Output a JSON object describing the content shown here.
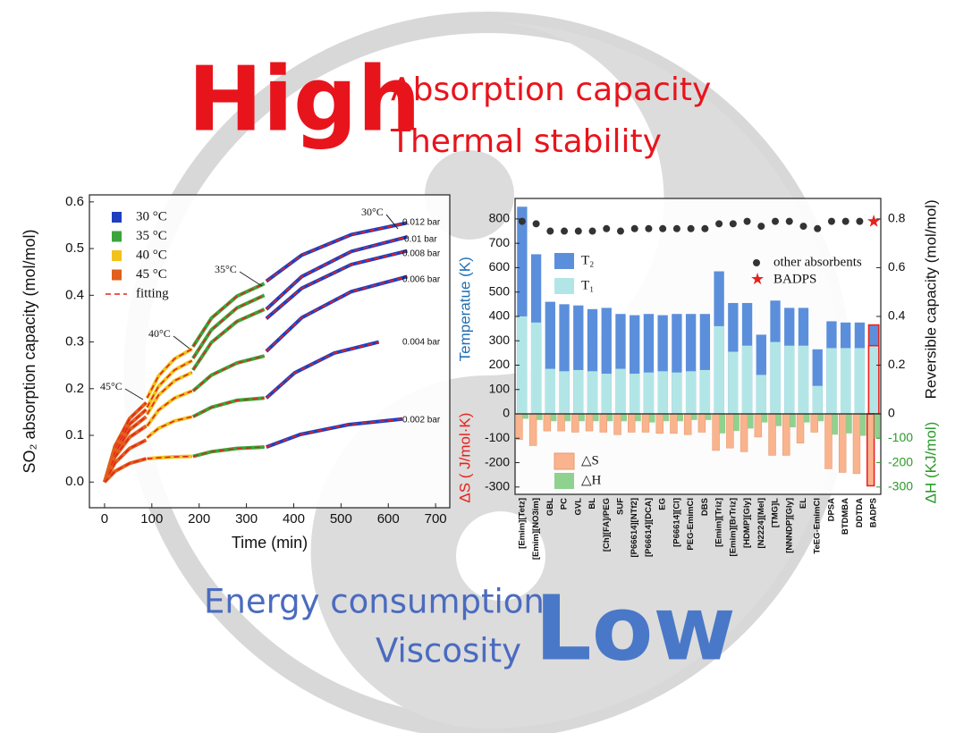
{
  "headline": {
    "high": "High",
    "high_items": [
      "Absorption capacity",
      "Thermal stability"
    ],
    "low": "Low",
    "low_items": [
      "Energy consumption",
      "Viscosity"
    ]
  },
  "chart_data": [
    {
      "type": "line",
      "xlabel": "Time (min)",
      "ylabel": "SO₂ absorption capacity (mol/mol)",
      "xlim": [
        -32,
        730
      ],
      "xticks": [
        0,
        100,
        200,
        300,
        400,
        500,
        600,
        700
      ],
      "ylim": [
        -0.055,
        0.615
      ],
      "yticks": [
        {
          "value": 0,
          "label": "0.0"
        },
        0.1,
        0.2,
        0.3,
        0.4,
        0.5,
        0.6
      ],
      "series": [
        {
          "name": "30 °C",
          "color": "#1f3fbf",
          "segments": [
            {
              "x": [
                342,
                417,
                522,
                640
              ],
              "values": [
                0.43,
                0.486,
                0.53,
                0.555
              ]
            },
            {
              "x": [
                342,
                417,
                522,
                640
              ],
              "values": [
                0.37,
                0.44,
                0.494,
                0.525
              ]
            },
            {
              "x": [
                342,
                417,
                522,
                640
              ],
              "values": [
                0.35,
                0.415,
                0.466,
                0.495
              ]
            },
            {
              "x": [
                342,
                417,
                522,
                640
              ],
              "values": [
                0.28,
                0.352,
                0.408,
                0.44
              ]
            },
            {
              "x": [
                342,
                402,
                485,
                580
              ],
              "values": [
                0.18,
                0.234,
                0.276,
                0.3
              ]
            },
            {
              "x": [
                342,
                414,
                516,
                630
              ],
              "values": [
                0.075,
                0.102,
                0.123,
                0.135
              ]
            }
          ]
        },
        {
          "name": "35 °C",
          "color": "#3aa53a",
          "segments": [
            {
              "x": [
                187,
                226,
                280,
                338
              ],
              "values": [
                0.29,
                0.351,
                0.398,
                0.425
              ]
            },
            {
              "x": [
                187,
                226,
                280,
                338
              ],
              "values": [
                0.265,
                0.326,
                0.373,
                0.4
              ]
            },
            {
              "x": [
                187,
                226,
                280,
                338
              ],
              "values": [
                0.24,
                0.299,
                0.344,
                0.37
              ]
            },
            {
              "x": [
                187,
                226,
                280,
                338
              ],
              "values": [
                0.195,
                0.229,
                0.255,
                0.27
              ]
            },
            {
              "x": [
                187,
                226,
                280,
                338
              ],
              "values": [
                0.14,
                0.16,
                0.175,
                0.18
              ]
            },
            {
              "x": [
                187,
                226,
                280,
                338
              ],
              "values": [
                0.055,
                0.065,
                0.072,
                0.075
              ]
            }
          ]
        },
        {
          "name": "40 °C",
          "color": "#f2c21c",
          "segments": [
            {
              "x": [
                90,
                114,
                148,
                185
              ],
              "values": [
                0.18,
                0.227,
                0.264,
                0.285
              ]
            },
            {
              "x": [
                90,
                114,
                148,
                185
              ],
              "values": [
                0.16,
                0.205,
                0.24,
                0.26
              ]
            },
            {
              "x": [
                90,
                114,
                148,
                185
              ],
              "values": [
                0.145,
                0.186,
                0.217,
                0.235
              ]
            },
            {
              "x": [
                90,
                114,
                148,
                185
              ],
              "values": [
                0.12,
                0.154,
                0.18,
                0.195
              ]
            },
            {
              "x": [
                90,
                114,
                148,
                185
              ],
              "values": [
                0.095,
                0.115,
                0.131,
                0.14
              ]
            },
            {
              "x": [
                90,
                114,
                148,
                185
              ],
              "values": [
                0.05,
                0.052,
                0.054,
                0.055
              ]
            }
          ]
        },
        {
          "name": "45 °C",
          "color": "#e0601c",
          "segments": [
            {
              "x": [
                0,
                22,
                53,
                88
              ],
              "values": [
                0,
                0.077,
                0.136,
                0.17
              ]
            },
            {
              "x": [
                0,
                22,
                53,
                88
              ],
              "values": [
                0,
                0.07,
                0.124,
                0.155
              ]
            },
            {
              "x": [
                0,
                22,
                53,
                88
              ],
              "values": [
                0,
                0.063,
                0.112,
                0.14
              ]
            },
            {
              "x": [
                0,
                22,
                53,
                88
              ],
              "values": [
                0,
                0.054,
                0.096,
                0.12
              ]
            },
            {
              "x": [
                0,
                22,
                53,
                88
              ],
              "values": [
                0,
                0.041,
                0.072,
                0.09
              ]
            },
            {
              "x": [
                0,
                22,
                53,
                88
              ],
              "values": [
                0,
                0.023,
                0.04,
                0.05
              ]
            }
          ]
        },
        {
          "name": "fitting",
          "color": "#e8201c",
          "dash": true
        }
      ],
      "annotations": {
        "pressures": [
          "0.012 bar",
          "0.01  bar",
          "0.008 bar",
          "0.006 bar",
          "0.004 bar",
          "0.002 bar"
        ],
        "temperatures": [
          "30°C",
          "35°C",
          "40°C",
          "45°C"
        ]
      }
    },
    {
      "type": "bar",
      "categories": [
        "[Emim][Tetz]",
        "[Emim][NO3im]",
        "GBL",
        "PC",
        "GVL",
        "BL",
        "[Ch][FA]/PEG",
        "SUF",
        "[P66614][NTf2]",
        "[P66614][DCA]",
        "EG",
        "[P66614][Cl]",
        "PEG-EmimCl",
        "DBS",
        "[Emim][Triz]",
        "[Emim][BrTriz]",
        "[HDMP][Gly]",
        "[N2224][MeI]",
        "[TMG]L",
        "[NNNDP][Gly]",
        "EL",
        "TeEG-EmimCl",
        "DPSA",
        "BTDMBA",
        "DDTDA",
        "BADPS"
      ],
      "ylabel": "Temperatue (K)",
      "ylabel_lower": "ΔS ( J/mol·K)",
      "y2label": "Reversible capacity (mol/mol)",
      "y3label": "ΔH (KJ/mol)",
      "ylim": [
        -330,
        884
      ],
      "yticks": [
        -300,
        -200,
        -100,
        0,
        100,
        200,
        300,
        400,
        500,
        600,
        700,
        800
      ],
      "y2lim": [
        -0.33,
        0.884
      ],
      "y2ticks": [
        0,
        0.2,
        0.4,
        0.6,
        0.8
      ],
      "y3lim": [
        -330,
        884
      ],
      "y3ticks": [
        -100,
        -200,
        -300
      ],
      "series": [
        {
          "name": "T₂",
          "type": "bar",
          "color": "#5b8fdc",
          "values": [
            850,
            655,
            460,
            450,
            445,
            430,
            435,
            410,
            405,
            410,
            405,
            410,
            410,
            410,
            585,
            455,
            455,
            325,
            465,
            435,
            435,
            265,
            380,
            375,
            375,
            365
          ]
        },
        {
          "name": "T₁",
          "type": "bar",
          "color": "#b2e6e6",
          "values": [
            400,
            375,
            185,
            175,
            180,
            175,
            165,
            185,
            165,
            170,
            175,
            170,
            175,
            180,
            360,
            255,
            280,
            160,
            295,
            280,
            280,
            115,
            270,
            270,
            270,
            280
          ]
        },
        {
          "name": "other absorbents",
          "type": "scatter",
          "color": "#333333",
          "axis": "y2",
          "values": [
            0.79,
            0.78,
            0.75,
            0.75,
            0.75,
            0.75,
            0.76,
            0.75,
            0.76,
            0.76,
            0.76,
            0.76,
            0.76,
            0.76,
            0.78,
            0.78,
            0.79,
            0.77,
            0.79,
            0.79,
            0.77,
            0.76,
            0.79,
            0.79,
            0.79,
            null
          ]
        },
        {
          "name": "BADPS",
          "type": "star",
          "color": "#e8201c",
          "axis": "y2",
          "values": [
            null,
            null,
            null,
            null,
            null,
            null,
            null,
            null,
            null,
            null,
            null,
            null,
            null,
            null,
            null,
            null,
            null,
            null,
            null,
            null,
            null,
            null,
            null,
            null,
            null,
            0.79
          ]
        },
        {
          "name": "△S",
          "type": "bar",
          "color": "#f9b48e",
          "values": [
            -105,
            -130,
            -70,
            -70,
            -75,
            -70,
            -75,
            -85,
            -75,
            -75,
            -80,
            -80,
            -85,
            -75,
            -150,
            -140,
            -155,
            -95,
            -170,
            -170,
            -120,
            -75,
            -225,
            -240,
            -245,
            -295
          ]
        },
        {
          "name": "△H",
          "type": "bar",
          "color": "#8fd18f",
          "axis": "y3",
          "values": [
            -20,
            -25,
            -30,
            -30,
            -30,
            -30,
            -30,
            -30,
            -30,
            -35,
            -30,
            -30,
            -25,
            -25,
            -80,
            -70,
            -60,
            -35,
            -50,
            -55,
            -35,
            -30,
            -85,
            -80,
            -90,
            -100
          ]
        }
      ]
    }
  ]
}
